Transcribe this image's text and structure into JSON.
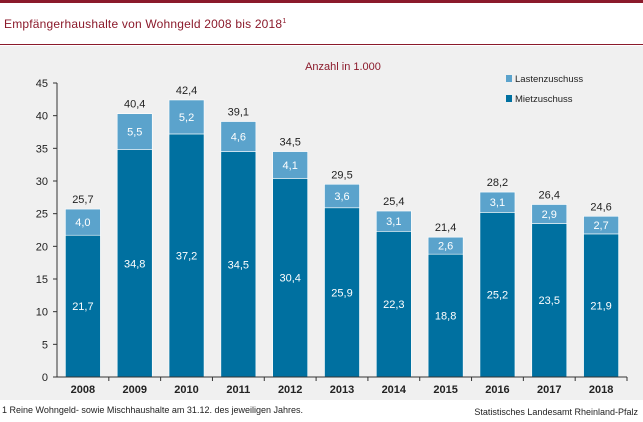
{
  "header": {
    "title": "Empfängerhaushalte  von Wohngeld 2008  bis 2018",
    "title_sup": "1"
  },
  "footnote": "1 Reine Wohngeld- sowie Mischhaushalte am 31.12. des jeweiligen Jahres.",
  "source": "Statistisches Landesamt Rheinland-Pfalz",
  "colors": {
    "accent": "#8b1a2b",
    "mietzuschuss": "#0070a0",
    "lastenzuschuss": "#5ba3cc",
    "panel": "#f0f0f0"
  },
  "chart_data": {
    "type": "bar",
    "stacked": true,
    "subtitle": "Anzahl in 1.000",
    "categories": [
      "2008",
      "2009",
      "2010",
      "2011",
      "2012",
      "2013",
      "2014",
      "2015",
      "2016",
      "2017",
      "2018"
    ],
    "series": [
      {
        "name": "Mietzuschuss",
        "values": [
          21.7,
          34.8,
          37.2,
          34.5,
          30.4,
          25.9,
          22.3,
          18.8,
          25.2,
          23.5,
          21.9
        ]
      },
      {
        "name": "Lastenzuschuss",
        "values": [
          4.0,
          5.5,
          5.2,
          4.6,
          4.1,
          3.6,
          3.1,
          2.6,
          3.1,
          2.9,
          2.7
        ]
      }
    ],
    "totals": [
      25.7,
      40.4,
      42.4,
      39.1,
      34.5,
      29.5,
      25.4,
      21.4,
      28.2,
      26.4,
      24.6
    ],
    "yticks": [
      0,
      5,
      10,
      15,
      20,
      25,
      30,
      35,
      40,
      45
    ],
    "ylim": [
      0,
      45
    ],
    "legend_position": "top-right",
    "grid": false
  }
}
